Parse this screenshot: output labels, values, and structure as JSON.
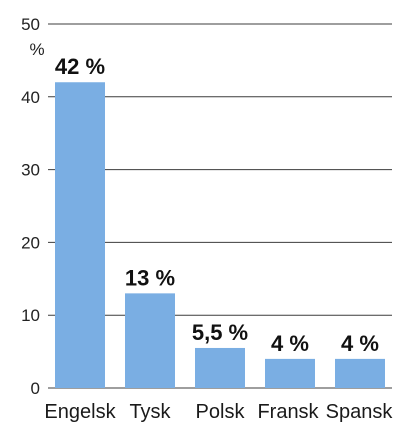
{
  "chart_data": {
    "type": "bar",
    "unit_label": "%",
    "categories": [
      "Engelsk",
      "Tysk",
      "Polsk",
      "Fransk",
      "Spansk"
    ],
    "values": [
      42,
      13,
      5.5,
      4,
      4
    ],
    "data_labels": [
      "42 %",
      "13 %",
      "5,5 %",
      "4 %",
      "4 %"
    ],
    "y_ticks": [
      "0",
      "10",
      "20",
      "30",
      "40",
      "50"
    ],
    "ylim": [
      0,
      50
    ],
    "grid": true,
    "colors": {
      "bar": "#7aaee3",
      "grid": "#3d3d3d",
      "text": "#1a1a1a"
    }
  }
}
